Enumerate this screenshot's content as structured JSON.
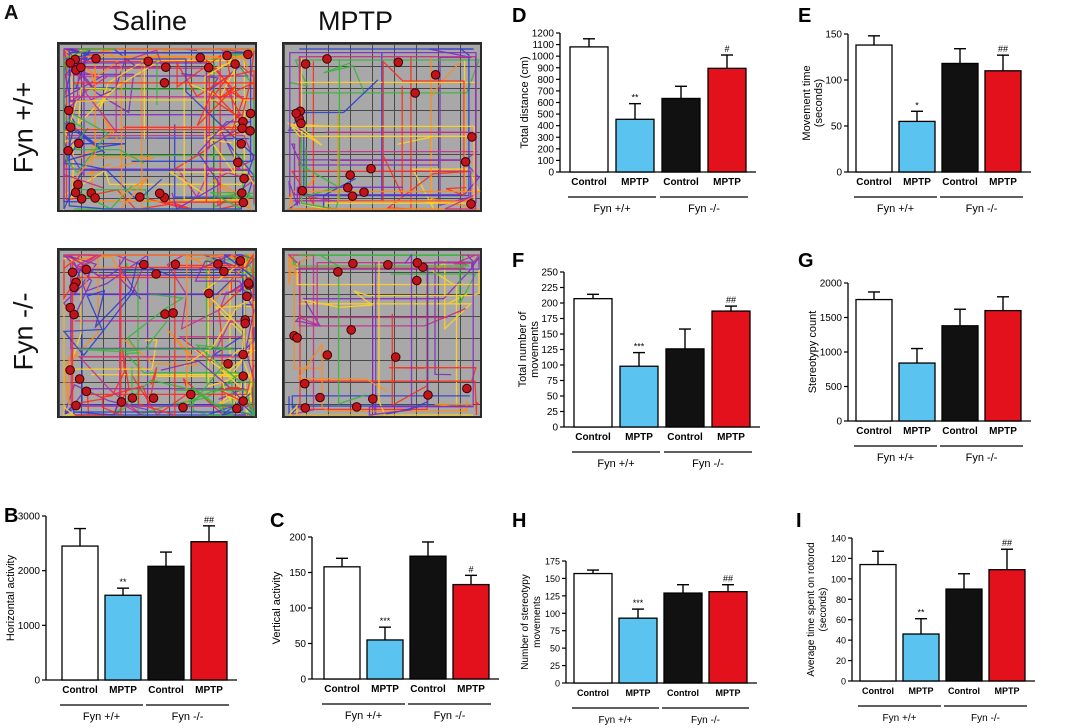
{
  "panel_a": {
    "letter": "A",
    "columns": [
      "Saline",
      "MPTP"
    ],
    "rows": [
      "Fyn +/+",
      "Fyn -/-"
    ]
  },
  "chart_data": [
    {
      "id": "B",
      "type": "bar",
      "ylabel": "Horizontal activity",
      "ylim": [
        0,
        3000
      ],
      "yticks": [
        0,
        1000,
        2000,
        3000
      ],
      "values": [
        2450,
        1550,
        2080,
        2530
      ],
      "errors": [
        320,
        130,
        260,
        290
      ],
      "annotations": [
        "",
        "**",
        "",
        "##"
      ]
    },
    {
      "id": "C",
      "type": "bar",
      "ylabel": "Vertical activity",
      "ylim": [
        0,
        200
      ],
      "yticks": [
        0,
        50,
        100,
        150,
        200
      ],
      "values": [
        158,
        55,
        173,
        133
      ],
      "errors": [
        12,
        18,
        20,
        13
      ],
      "annotations": [
        "",
        "***",
        "",
        "#"
      ]
    },
    {
      "id": "D",
      "type": "bar",
      "ylabel": "Total distance  (cm)",
      "ylim": [
        0,
        1200
      ],
      "yticks": [
        0,
        100,
        200,
        300,
        400,
        500,
        600,
        700,
        800,
        900,
        1000,
        1100,
        1200
      ],
      "values": [
        1080,
        455,
        635,
        895
      ],
      "errors": [
        70,
        135,
        105,
        115
      ],
      "annotations": [
        "",
        "**",
        "",
        "#"
      ]
    },
    {
      "id": "E",
      "type": "bar",
      "ylabel": "Movement time\n(seconds)",
      "ylim": [
        0,
        150
      ],
      "yticks": [
        0,
        50,
        100,
        150
      ],
      "values": [
        138,
        55,
        118,
        110
      ],
      "errors": [
        10,
        11,
        16,
        17
      ],
      "annotations": [
        "",
        "*",
        "",
        "##"
      ]
    },
    {
      "id": "F",
      "type": "bar",
      "ylabel": "Total number of\nmovements",
      "ylim": [
        0,
        250
      ],
      "yticks": [
        0,
        25,
        50,
        75,
        100,
        125,
        150,
        175,
        200,
        225,
        250
      ],
      "values": [
        207,
        98,
        126,
        187
      ],
      "errors": [
        7,
        22,
        32,
        8
      ],
      "annotations": [
        "",
        "***",
        "",
        "##"
      ]
    },
    {
      "id": "G",
      "type": "bar",
      "ylabel": "Stereotypy count",
      "ylim": [
        0,
        2000
      ],
      "yticks": [
        0,
        500,
        1000,
        1500,
        2000
      ],
      "values": [
        1760,
        840,
        1380,
        1600
      ],
      "errors": [
        110,
        210,
        240,
        200
      ],
      "annotations": [
        "",
        "",
        "",
        ""
      ]
    },
    {
      "id": "H",
      "type": "bar",
      "ylabel": "Number of stereotypy\nmovements",
      "ylim": [
        0,
        175
      ],
      "yticks": [
        0,
        25,
        50,
        75,
        100,
        125,
        150,
        175
      ],
      "values": [
        157,
        93,
        129,
        131
      ],
      "errors": [
        5,
        13,
        12,
        10
      ],
      "annotations": [
        "",
        "***",
        "",
        "##"
      ]
    },
    {
      "id": "I",
      "type": "bar",
      "ylabel": "Average time spent on rotorod\n(seconds)",
      "ylim": [
        0,
        140
      ],
      "yticks": [
        0,
        20,
        40,
        60,
        80,
        100,
        120,
        140
      ],
      "values": [
        114,
        46,
        90,
        109
      ],
      "errors": [
        13,
        15,
        15,
        20
      ],
      "annotations": [
        "",
        "**",
        "",
        "##"
      ]
    }
  ],
  "shared": {
    "categories": [
      "Control",
      "MPTP",
      "Control",
      "MPTP"
    ],
    "groups": [
      "Fyn +/+",
      "Fyn -/-"
    ],
    "colors": [
      "#ffffff",
      "#5bc3ef",
      "#111111",
      "#e3111b"
    ]
  }
}
